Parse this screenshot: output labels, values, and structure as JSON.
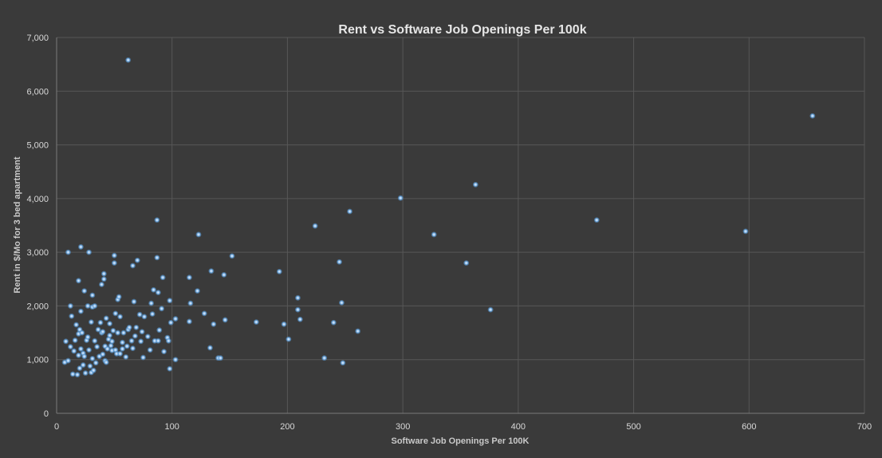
{
  "chart_data": {
    "type": "scatter",
    "title": "Rent vs Software Job Openings Per 100k",
    "xlabel": "Software Job Openings Per 100K",
    "ylabel": "Rent in $/Mo for 3 bed apartment",
    "xlim": [
      0,
      700
    ],
    "ylim": [
      0,
      7000
    ],
    "xticks": [
      0,
      100,
      200,
      300,
      400,
      500,
      600,
      700
    ],
    "yticks": [
      0,
      1000,
      2000,
      3000,
      4000,
      5000,
      6000,
      7000
    ],
    "xtick_labels": [
      "0",
      "100",
      "200",
      "300",
      "400",
      "500",
      "600",
      "700"
    ],
    "ytick_labels": [
      "0",
      "1,000",
      "2,000",
      "3,000",
      "4,000",
      "5,000",
      "6,000",
      "7,000"
    ],
    "grid": true,
    "legend": "none",
    "marker_color": "#5b9bd5",
    "marker_highlight": "#d6e8fb",
    "background": "#3a3a3a",
    "series": [
      {
        "values": [
          {
            "x": 7,
            "y": 950
          },
          {
            "x": 8,
            "y": 1340
          },
          {
            "x": 10,
            "y": 980
          },
          {
            "x": 10,
            "y": 3000
          },
          {
            "x": 12,
            "y": 2000
          },
          {
            "x": 12,
            "y": 1240
          },
          {
            "x": 13,
            "y": 1810
          },
          {
            "x": 14,
            "y": 730
          },
          {
            "x": 15,
            "y": 1160
          },
          {
            "x": 16,
            "y": 1360
          },
          {
            "x": 17,
            "y": 1650
          },
          {
            "x": 18,
            "y": 720
          },
          {
            "x": 19,
            "y": 1080
          },
          {
            "x": 19,
            "y": 1480
          },
          {
            "x": 19,
            "y": 2470
          },
          {
            "x": 20,
            "y": 1560
          },
          {
            "x": 20,
            "y": 840
          },
          {
            "x": 21,
            "y": 1200
          },
          {
            "x": 21,
            "y": 1900
          },
          {
            "x": 21,
            "y": 3100
          },
          {
            "x": 22,
            "y": 1500
          },
          {
            "x": 23,
            "y": 1120
          },
          {
            "x": 23,
            "y": 900
          },
          {
            "x": 24,
            "y": 2280
          },
          {
            "x": 24,
            "y": 1060
          },
          {
            "x": 25,
            "y": 750
          },
          {
            "x": 26,
            "y": 1360
          },
          {
            "x": 27,
            "y": 2000
          },
          {
            "x": 27,
            "y": 1420
          },
          {
            "x": 28,
            "y": 1180
          },
          {
            "x": 28,
            "y": 3000
          },
          {
            "x": 29,
            "y": 880
          },
          {
            "x": 30,
            "y": 760
          },
          {
            "x": 30,
            "y": 1700
          },
          {
            "x": 31,
            "y": 1020
          },
          {
            "x": 31,
            "y": 1980
          },
          {
            "x": 31,
            "y": 2200
          },
          {
            "x": 32,
            "y": 800
          },
          {
            "x": 33,
            "y": 1350
          },
          {
            "x": 33,
            "y": 2000
          },
          {
            "x": 34,
            "y": 940
          },
          {
            "x": 35,
            "y": 1240
          },
          {
            "x": 36,
            "y": 1560
          },
          {
            "x": 37,
            "y": 1060
          },
          {
            "x": 38,
            "y": 1690
          },
          {
            "x": 39,
            "y": 1500
          },
          {
            "x": 39,
            "y": 2400
          },
          {
            "x": 40,
            "y": 1100
          },
          {
            "x": 40,
            "y": 1520
          },
          {
            "x": 41,
            "y": 2500
          },
          {
            "x": 41,
            "y": 2600
          },
          {
            "x": 42,
            "y": 980
          },
          {
            "x": 42,
            "y": 1250
          },
          {
            "x": 43,
            "y": 1770
          },
          {
            "x": 43,
            "y": 950
          },
          {
            "x": 44,
            "y": 1200
          },
          {
            "x": 45,
            "y": 1380
          },
          {
            "x": 46,
            "y": 1450
          },
          {
            "x": 46,
            "y": 1670
          },
          {
            "x": 47,
            "y": 1260
          },
          {
            "x": 48,
            "y": 1340
          },
          {
            "x": 48,
            "y": 1170
          },
          {
            "x": 49,
            "y": 1540
          },
          {
            "x": 50,
            "y": 2800
          },
          {
            "x": 50,
            "y": 2940
          },
          {
            "x": 51,
            "y": 1180
          },
          {
            "x": 51,
            "y": 1860
          },
          {
            "x": 52,
            "y": 1110
          },
          {
            "x": 53,
            "y": 1500
          },
          {
            "x": 53,
            "y": 2120
          },
          {
            "x": 54,
            "y": 2170
          },
          {
            "x": 55,
            "y": 1110
          },
          {
            "x": 55,
            "y": 1800
          },
          {
            "x": 57,
            "y": 1320
          },
          {
            "x": 57,
            "y": 1200
          },
          {
            "x": 58,
            "y": 1500
          },
          {
            "x": 60,
            "y": 1050
          },
          {
            "x": 61,
            "y": 1250
          },
          {
            "x": 62,
            "y": 6580
          },
          {
            "x": 62,
            "y": 1560
          },
          {
            "x": 63,
            "y": 1600
          },
          {
            "x": 65,
            "y": 1350
          },
          {
            "x": 66,
            "y": 1210
          },
          {
            "x": 66,
            "y": 2750
          },
          {
            "x": 67,
            "y": 2080
          },
          {
            "x": 68,
            "y": 1440
          },
          {
            "x": 69,
            "y": 1600
          },
          {
            "x": 70,
            "y": 2850
          },
          {
            "x": 72,
            "y": 1840
          },
          {
            "x": 73,
            "y": 1340
          },
          {
            "x": 74,
            "y": 1520
          },
          {
            "x": 75,
            "y": 1040
          },
          {
            "x": 76,
            "y": 1800
          },
          {
            "x": 79,
            "y": 1430
          },
          {
            "x": 81,
            "y": 1180
          },
          {
            "x": 82,
            "y": 2050
          },
          {
            "x": 83,
            "y": 1850
          },
          {
            "x": 84,
            "y": 2300
          },
          {
            "x": 85,
            "y": 1350
          },
          {
            "x": 87,
            "y": 3600
          },
          {
            "x": 87,
            "y": 2900
          },
          {
            "x": 88,
            "y": 1350
          },
          {
            "x": 88,
            "y": 2250
          },
          {
            "x": 89,
            "y": 1550
          },
          {
            "x": 91,
            "y": 1950
          },
          {
            "x": 92,
            "y": 2530
          },
          {
            "x": 93,
            "y": 1150
          },
          {
            "x": 96,
            "y": 1410
          },
          {
            "x": 97,
            "y": 1350
          },
          {
            "x": 98,
            "y": 830
          },
          {
            "x": 98,
            "y": 2100
          },
          {
            "x": 99,
            "y": 1690
          },
          {
            "x": 103,
            "y": 1000
          },
          {
            "x": 103,
            "y": 1760
          },
          {
            "x": 115,
            "y": 1710
          },
          {
            "x": 115,
            "y": 2530
          },
          {
            "x": 116,
            "y": 2050
          },
          {
            "x": 122,
            "y": 2280
          },
          {
            "x": 123,
            "y": 3330
          },
          {
            "x": 128,
            "y": 1860
          },
          {
            "x": 133,
            "y": 1220
          },
          {
            "x": 134,
            "y": 2650
          },
          {
            "x": 136,
            "y": 1660
          },
          {
            "x": 140,
            "y": 1030
          },
          {
            "x": 142,
            "y": 1030
          },
          {
            "x": 145,
            "y": 2580
          },
          {
            "x": 146,
            "y": 1740
          },
          {
            "x": 152,
            "y": 2930
          },
          {
            "x": 173,
            "y": 1700
          },
          {
            "x": 193,
            "y": 2640
          },
          {
            "x": 197,
            "y": 1660
          },
          {
            "x": 201,
            "y": 1380
          },
          {
            "x": 209,
            "y": 1930
          },
          {
            "x": 209,
            "y": 2150
          },
          {
            "x": 211,
            "y": 1750
          },
          {
            "x": 224,
            "y": 3490
          },
          {
            "x": 232,
            "y": 1030
          },
          {
            "x": 240,
            "y": 1690
          },
          {
            "x": 245,
            "y": 2820
          },
          {
            "x": 247,
            "y": 2060
          },
          {
            "x": 248,
            "y": 940
          },
          {
            "x": 254,
            "y": 3760
          },
          {
            "x": 261,
            "y": 1530
          },
          {
            "x": 298,
            "y": 4010
          },
          {
            "x": 327,
            "y": 3330
          },
          {
            "x": 355,
            "y": 2800
          },
          {
            "x": 363,
            "y": 4260
          },
          {
            "x": 376,
            "y": 1930
          },
          {
            "x": 468,
            "y": 3600
          },
          {
            "x": 597,
            "y": 3390
          },
          {
            "x": 655,
            "y": 5540
          }
        ]
      }
    ]
  }
}
